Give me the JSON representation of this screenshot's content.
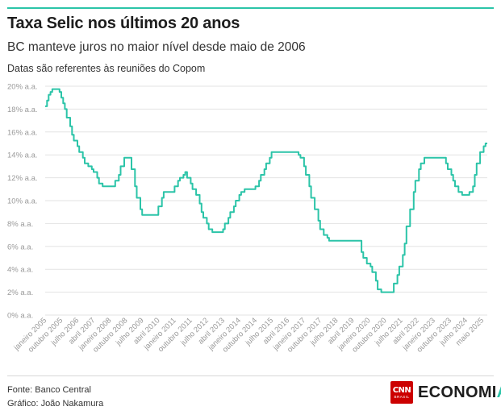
{
  "header": {
    "title": "Taxa Selic nos últimos 20 anos",
    "subtitle": "BC manteve juros no maior nível desde maio de 2006",
    "note": "Datas são referentes às reuniões do Copom"
  },
  "footer": {
    "source": "Fonte: Banco Central",
    "credit": "Gráfico: João Nakamura"
  },
  "logo": {
    "brand": "CNN",
    "brand_sub": "BRASIL",
    "section_main": "ECONOMI",
    "section_accent": "A"
  },
  "colors": {
    "line": "#2bc4a8",
    "accent": "#2bc4a8",
    "brand_red": "#cc0000",
    "grid": "#e3e3e3"
  },
  "chart_data": {
    "type": "line",
    "title": "Taxa Selic nos últimos 20 anos",
    "xlabel": "",
    "ylabel": "",
    "ylim": [
      0,
      20
    ],
    "yticks": [
      "0% a.a.",
      "2% a.a.",
      "4% a.a.",
      "6% a.a.",
      "8% a.a.",
      "10% a.a.",
      "12% a.a.",
      "14% a.a.",
      "16% a.a.",
      "18% a.a.",
      "20% a.a."
    ],
    "xticks": [
      "janeiro 2005",
      "outubro 2005",
      "julho 2006",
      "abril 2007",
      "janeiro 2008",
      "outubro 2008",
      "julho 2009",
      "abril 2010",
      "janeiro 2011",
      "outubro 2011",
      "julho 2012",
      "abril 2013",
      "janeiro 2014",
      "outubro 2014",
      "julho 2015",
      "abril 2016",
      "janeiro 2017",
      "outubro 2017",
      "julho 2018",
      "abril 2019",
      "janeiro 2020",
      "outubro 2020",
      "julho 2021",
      "abril 2022",
      "janeiro 2023",
      "outubro 2023",
      "julho 2024",
      "maio 2025"
    ],
    "grid": true,
    "legend": "none",
    "series": [
      {
        "name": "",
        "x": [
          "2005-01",
          "2005-02",
          "2005-03",
          "2005-04",
          "2005-05",
          "2005-07",
          "2005-09",
          "2005-10",
          "2005-11",
          "2005-12",
          "2006-01",
          "2006-03",
          "2006-04",
          "2006-05",
          "2006-07",
          "2006-08",
          "2006-10",
          "2006-11",
          "2006-12",
          "2007-01",
          "2007-03",
          "2007-04",
          "2007-06",
          "2007-07",
          "2007-09",
          "2008-01",
          "2008-04",
          "2008-06",
          "2008-07",
          "2008-09",
          "2008-12",
          "2009-01",
          "2009-03",
          "2009-04",
          "2009-06",
          "2009-07",
          "2010-03",
          "2010-04",
          "2010-06",
          "2010-07",
          "2010-12",
          "2011-01",
          "2011-03",
          "2011-04",
          "2011-06",
          "2011-07",
          "2011-08",
          "2011-10",
          "2011-11",
          "2012-01",
          "2012-03",
          "2012-04",
          "2012-05",
          "2012-07",
          "2012-08",
          "2012-10",
          "2013-03",
          "2013-04",
          "2013-05",
          "2013-07",
          "2013-08",
          "2013-10",
          "2013-11",
          "2014-01",
          "2014-02",
          "2014-04",
          "2014-10",
          "2014-12",
          "2015-01",
          "2015-03",
          "2015-04",
          "2015-06",
          "2015-07",
          "2016-08",
          "2016-10",
          "2016-11",
          "2017-01",
          "2017-02",
          "2017-04",
          "2017-05",
          "2017-07",
          "2017-09",
          "2017-10",
          "2017-12",
          "2018-02",
          "2018-03",
          "2019-07",
          "2019-09",
          "2019-10",
          "2019-12",
          "2020-02",
          "2020-03",
          "2020-05",
          "2020-06",
          "2020-08",
          "2021-03",
          "2021-05",
          "2021-06",
          "2021-08",
          "2021-09",
          "2021-10",
          "2021-12",
          "2022-02",
          "2022-03",
          "2022-05",
          "2022-06",
          "2022-08",
          "2023-08",
          "2023-09",
          "2023-11",
          "2023-12",
          "2024-01",
          "2024-03",
          "2024-05",
          "2024-09",
          "2024-11",
          "2024-12",
          "2025-01",
          "2025-03",
          "2025-05",
          "2025-06",
          "2025-07"
        ],
        "values": [
          18.25,
          18.75,
          19.25,
          19.5,
          19.75,
          19.75,
          19.5,
          19.0,
          18.5,
          18.0,
          17.25,
          16.5,
          15.75,
          15.25,
          14.75,
          14.25,
          13.75,
          13.25,
          13.25,
          13.0,
          12.75,
          12.5,
          12.0,
          11.5,
          11.25,
          11.25,
          11.75,
          12.25,
          13.0,
          13.75,
          13.75,
          12.75,
          11.25,
          10.25,
          9.25,
          8.75,
          8.75,
          9.5,
          10.25,
          10.75,
          10.75,
          11.25,
          11.75,
          12.0,
          12.25,
          12.5,
          12.0,
          11.5,
          11.0,
          10.5,
          9.75,
          9.0,
          8.5,
          8.0,
          7.5,
          7.25,
          7.25,
          7.5,
          8.0,
          8.5,
          9.0,
          9.5,
          10.0,
          10.5,
          10.75,
          11.0,
          11.25,
          11.75,
          12.25,
          12.75,
          13.25,
          13.75,
          14.25,
          14.25,
          14.0,
          13.75,
          13.0,
          12.25,
          11.25,
          10.25,
          9.25,
          8.25,
          7.5,
          7.0,
          6.75,
          6.5,
          6.5,
          5.5,
          5.0,
          4.5,
          4.25,
          3.75,
          3.0,
          2.25,
          2.0,
          2.75,
          3.5,
          4.25,
          5.25,
          6.25,
          7.75,
          9.25,
          10.75,
          11.75,
          12.75,
          13.25,
          13.75,
          13.25,
          12.75,
          12.25,
          11.75,
          11.25,
          10.75,
          10.5,
          10.75,
          11.25,
          12.25,
          13.25,
          14.25,
          14.75,
          15.0,
          15.0
        ]
      }
    ]
  }
}
